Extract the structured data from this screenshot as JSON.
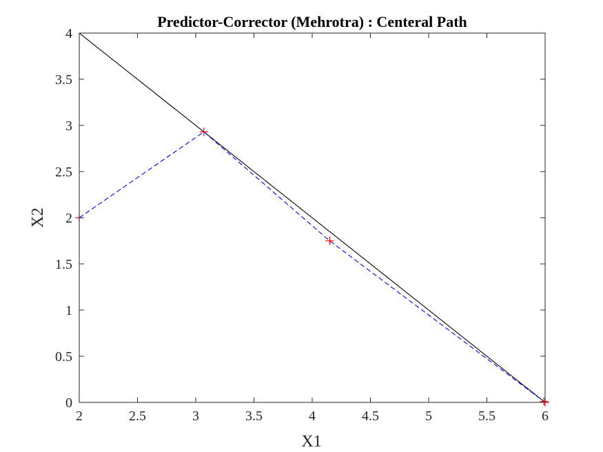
{
  "chart_data": {
    "type": "line",
    "title": "Predictor-Corrector (Mehrotra) : Centeral Path",
    "xlabel": "X1",
    "ylabel": "X2",
    "xlim": [
      2,
      6
    ],
    "ylim": [
      0,
      4
    ],
    "xticks": [
      "2",
      "2.5",
      "3",
      "3.5",
      "4",
      "4.5",
      "5",
      "5.5",
      "6"
    ],
    "yticks": [
      "0",
      "0.5",
      "1",
      "1.5",
      "2",
      "2.5",
      "3",
      "3.5",
      "4"
    ],
    "grid": false,
    "legend": "none",
    "series": [
      {
        "style": "solid",
        "color": "#000000",
        "x": [
          2,
          6
        ],
        "y": [
          4,
          0
        ]
      },
      {
        "style": "dashed",
        "color": "#0000ff",
        "marker": "+",
        "marker_color": "#ff0000",
        "x": [
          2,
          3.07,
          4.15,
          5.99,
          6
        ],
        "y": [
          2,
          2.93,
          1.75,
          0.01,
          0
        ]
      }
    ]
  }
}
